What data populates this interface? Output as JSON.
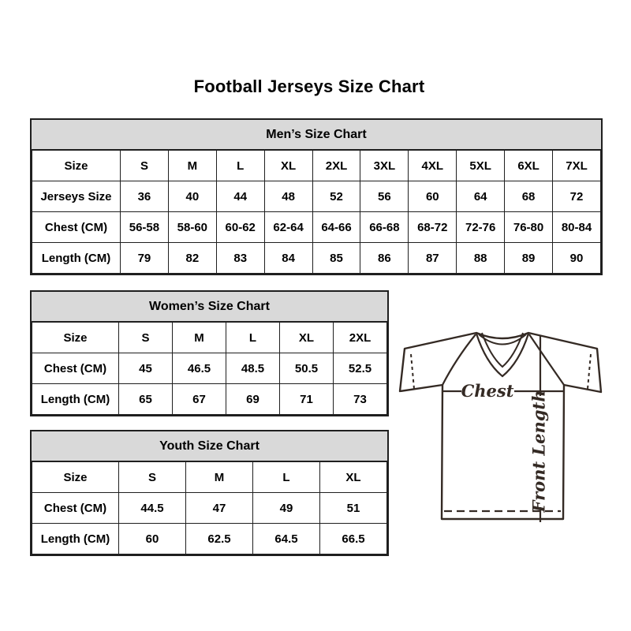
{
  "page": {
    "title": "Football Jerseys Size Chart"
  },
  "colors": {
    "border": "#1f1f1f",
    "header_bg": "#d9d9d9",
    "jersey_line": "#342a24"
  },
  "tables": {
    "mens": {
      "title": "Men’s Size Chart",
      "rows": [
        [
          "Size",
          "S",
          "M",
          "L",
          "XL",
          "2XL",
          "3XL",
          "4XL",
          "5XL",
          "6XL",
          "7XL"
        ],
        [
          "Jerseys Size",
          "36",
          "40",
          "44",
          "48",
          "52",
          "56",
          "60",
          "64",
          "68",
          "72"
        ],
        [
          "Chest (CM)",
          "56-58",
          "58-60",
          "60-62",
          "62-64",
          "64-66",
          "66-68",
          "68-72",
          "72-76",
          "76-80",
          "80-84"
        ],
        [
          "Length (CM)",
          "79",
          "82",
          "83",
          "84",
          "85",
          "86",
          "87",
          "88",
          "89",
          "90"
        ]
      ]
    },
    "womens": {
      "title": "Women’s Size Chart",
      "rows": [
        [
          "Size",
          "S",
          "M",
          "L",
          "XL",
          "2XL"
        ],
        [
          "Chest (CM)",
          "45",
          "46.5",
          "48.5",
          "50.5",
          "52.5"
        ],
        [
          "Length (CM)",
          "65",
          "67",
          "69",
          "71",
          "73"
        ]
      ]
    },
    "youth": {
      "title": "Youth Size Chart",
      "rows": [
        [
          "Size",
          "S",
          "M",
          "L",
          "XL"
        ],
        [
          "Chest (CM)",
          "44.5",
          "47",
          "49",
          "51"
        ],
        [
          "Length (CM)",
          "60",
          "62.5",
          "64.5",
          "66.5"
        ]
      ]
    }
  },
  "diagram": {
    "chest_label": "Chest",
    "front_length_label": "Front Length"
  }
}
